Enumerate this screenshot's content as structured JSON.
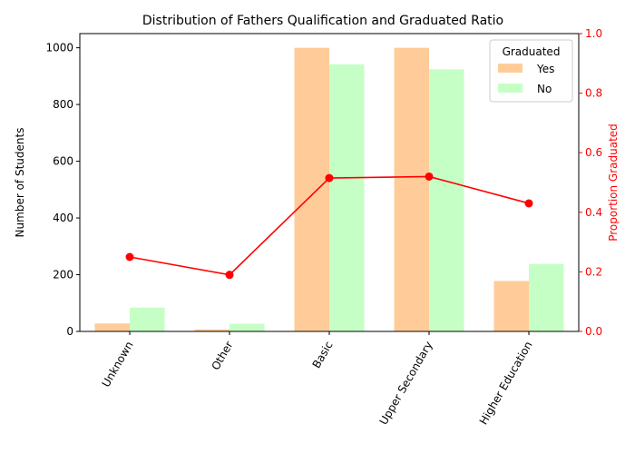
{
  "chart_data": {
    "type": "bar",
    "title": "Distribution of Fathers Qualification and Graduated Ratio",
    "xlabel": "",
    "ylabel": "Number of Students",
    "ylabel_right": "Proportion Graduated",
    "categories": [
      "Unknown",
      "Other",
      "Basic",
      "Upper Secondary",
      "Higher Education"
    ],
    "series": [
      {
        "name": "Yes",
        "values": [
          28,
          7,
          1000,
          1000,
          178
        ],
        "color": "#ffcc99"
      },
      {
        "name": "No",
        "values": [
          84,
          27,
          942,
          924,
          238
        ],
        "color": "#c6ffc6"
      }
    ],
    "line_series": {
      "values": [
        0.25,
        0.19,
        0.515,
        0.52,
        0.43
      ],
      "color": "#ff0000",
      "axis": "right"
    },
    "ylim": [
      0,
      1050
    ],
    "ylim_right": [
      0,
      1.0
    ],
    "yticks": [
      "0",
      "200",
      "400",
      "600",
      "800",
      "1000"
    ],
    "yticks_right": [
      "0.0",
      "0.2",
      "0.4",
      "0.6",
      "0.8",
      "1.0"
    ],
    "legend": {
      "title": "Graduated",
      "placement": "top-right"
    },
    "grid": false
  }
}
